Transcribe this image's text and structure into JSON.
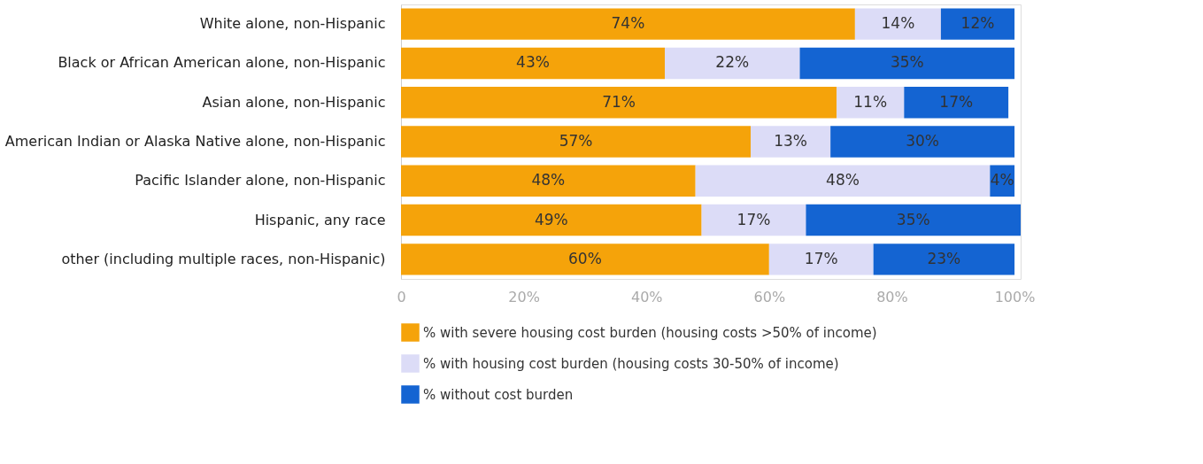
{
  "chart_data": {
    "type": "bar",
    "orientation": "horizontal",
    "stacked": true,
    "categories": [
      "White alone, non-Hispanic",
      "Black or African American alone, non-Hispanic",
      "Asian alone, non-Hispanic",
      "American Indian or Alaska Native alone, non-Hispanic",
      "Pacific Islander alone, non-Hispanic",
      "Hispanic, any race",
      "other (including multiple races, non-Hispanic)"
    ],
    "series": [
      {
        "name": "% with severe housing cost burden (housing costs >50% of income)",
        "color": "#f5a30a",
        "values": [
          74,
          43,
          71,
          57,
          48,
          49,
          60
        ],
        "value_labels": [
          "74%",
          "43%",
          "71%",
          "57%",
          "48%",
          "49%",
          "60%"
        ]
      },
      {
        "name": "% with housing cost burden (housing costs 30-50% of income)",
        "color": "#dcdcf7",
        "values": [
          14,
          22,
          11,
          13,
          48,
          17,
          17
        ],
        "value_labels": [
          "14%",
          "22%",
          "11%",
          "13%",
          "48%",
          "17%",
          "17%"
        ]
      },
      {
        "name": "% without cost burden",
        "color": "#1464d2",
        "values": [
          12,
          35,
          17,
          30,
          4,
          35,
          23
        ],
        "value_labels": [
          "12%",
          "35%",
          "17%",
          "30%",
          "4%",
          "35%",
          "23%"
        ]
      }
    ],
    "xlim": [
      0,
      101
    ],
    "xticks": [
      {
        "value": 0,
        "label": "0"
      },
      {
        "value": 20,
        "label": "20%"
      },
      {
        "value": 40,
        "label": "40%"
      },
      {
        "value": 60,
        "label": "60%"
      },
      {
        "value": 80,
        "label": "80%"
      },
      {
        "value": 100,
        "label": "100%"
      }
    ],
    "grid": false,
    "legend": "bottom"
  }
}
